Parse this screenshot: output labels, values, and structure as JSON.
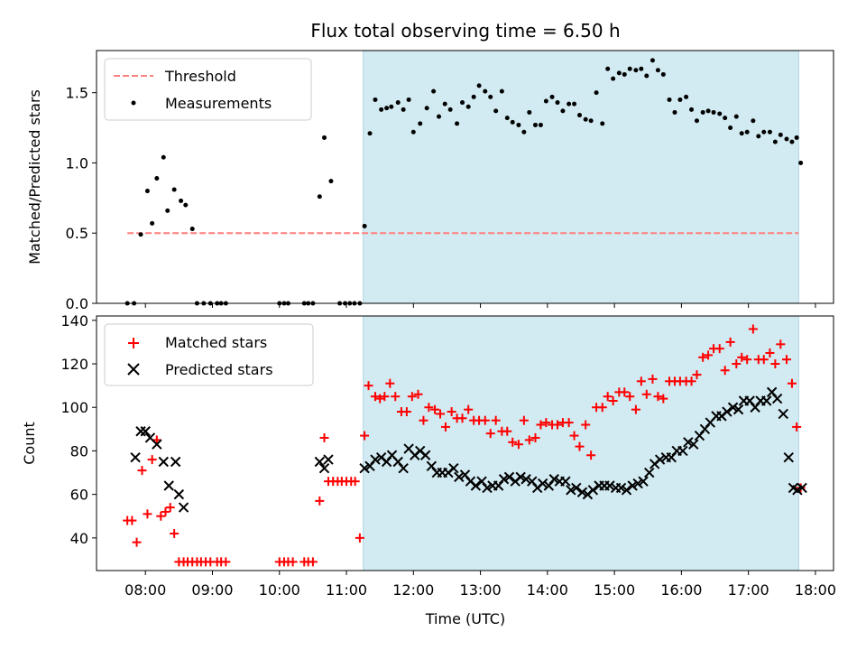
{
  "chart_data": [
    {
      "type": "scatter",
      "title": "Flux total observing time = 6.50 h",
      "xlabel": "",
      "ylabel": "Matched/Predicted stars",
      "xlim": [
        7.27,
        18.27
      ],
      "ylim": [
        0,
        1.8
      ],
      "yticks": [
        0.0,
        0.5,
        1.0,
        1.5
      ],
      "ytick_labels": [
        "0.0",
        "0.5",
        "1.0",
        "1.5"
      ],
      "shaded_region": {
        "x": [
          11.25,
          17.75
        ],
        "color": "#add8e6"
      },
      "threshold": {
        "name": "Threshold",
        "value": 0.5,
        "x": [
          7.73,
          17.75
        ],
        "color": "#ff7f7f"
      },
      "legend": {
        "placement": "upper-left",
        "entries": [
          "Threshold",
          "Measurements"
        ]
      },
      "series": [
        {
          "name": "Measurements",
          "marker": "dot",
          "color": "#000000",
          "x": [
            7.73,
            7.83,
            7.93,
            8.03,
            8.1,
            8.17,
            8.27,
            8.33,
            8.43,
            8.53,
            8.6,
            8.7,
            8.77,
            8.87,
            8.97,
            9.07,
            9.13,
            9.2,
            10.0,
            10.07,
            10.13,
            10.37,
            10.43,
            10.5,
            10.6,
            10.67,
            10.77,
            10.9,
            10.98,
            11.05,
            11.12,
            11.2,
            11.27,
            11.35,
            11.43,
            11.52,
            11.6,
            11.67,
            11.77,
            11.85,
            11.93,
            12.0,
            12.1,
            12.2,
            12.3,
            12.38,
            12.47,
            12.55,
            12.65,
            12.73,
            12.82,
            12.9,
            12.98,
            13.07,
            13.15,
            13.23,
            13.32,
            13.4,
            13.48,
            13.57,
            13.65,
            13.73,
            13.82,
            13.9,
            13.98,
            14.07,
            14.15,
            14.23,
            14.32,
            14.4,
            14.48,
            14.57,
            14.65,
            14.73,
            14.82,
            14.9,
            14.98,
            15.07,
            15.15,
            15.23,
            15.32,
            15.4,
            15.48,
            15.57,
            15.65,
            15.73,
            15.82,
            15.9,
            15.98,
            16.07,
            16.15,
            16.23,
            16.32,
            16.4,
            16.48,
            16.57,
            16.65,
            16.73,
            16.82,
            16.9,
            16.98,
            17.07,
            17.15,
            17.23,
            17.32,
            17.4,
            17.48,
            17.57,
            17.65,
            17.72,
            17.78
          ],
          "y": [
            0,
            0,
            0.49,
            0.8,
            0.57,
            0.89,
            1.04,
            0.66,
            0.81,
            0.73,
            0.7,
            0.53,
            0,
            0,
            0,
            0,
            0,
            0,
            0,
            0,
            0,
            0,
            0,
            0,
            0.76,
            1.18,
            0.87,
            0,
            0,
            0,
            0,
            0,
            0.55,
            1.21,
            1.45,
            1.38,
            1.39,
            1.4,
            1.43,
            1.38,
            1.45,
            1.22,
            1.28,
            1.39,
            1.51,
            1.33,
            1.42,
            1.38,
            1.28,
            1.43,
            1.4,
            1.47,
            1.55,
            1.51,
            1.47,
            1.37,
            1.51,
            1.32,
            1.29,
            1.27,
            1.22,
            1.36,
            1.27,
            1.27,
            1.44,
            1.47,
            1.43,
            1.37,
            1.42,
            1.42,
            1.34,
            1.31,
            1.3,
            1.5,
            1.28,
            1.67,
            1.6,
            1.64,
            1.63,
            1.67,
            1.66,
            1.67,
            1.62,
            1.73,
            1.66,
            1.63,
            1.45,
            1.36,
            1.45,
            1.47,
            1.38,
            1.3,
            1.36,
            1.37,
            1.36,
            1.35,
            1.32,
            1.25,
            1.33,
            1.21,
            1.22,
            1.3,
            1.19,
            1.22,
            1.22,
            1.15,
            1.2,
            1.17,
            1.15,
            1.18,
            1.0
          ]
        }
      ]
    },
    {
      "type": "scatter",
      "title": "",
      "xlabel": "Time (UTC)",
      "ylabel": "Count",
      "xlim": [
        7.27,
        18.27
      ],
      "ylim": [
        25,
        142
      ],
      "yticks": [
        40,
        60,
        80,
        100,
        120,
        140
      ],
      "ytick_labels": [
        "40",
        "60",
        "80",
        "100",
        "120",
        "140"
      ],
      "xticks": [
        8,
        9,
        10,
        11,
        12,
        13,
        14,
        15,
        16,
        17,
        18
      ],
      "xtick_labels": [
        "08:00",
        "09:00",
        "10:00",
        "11:00",
        "12:00",
        "13:00",
        "14:00",
        "15:00",
        "16:00",
        "17:00",
        "18:00"
      ],
      "shaded_region": {
        "x": [
          11.25,
          17.75
        ],
        "color": "#add8e6"
      },
      "legend": {
        "placement": "upper-left",
        "entries": [
          "Matched stars",
          "Predicted stars"
        ]
      },
      "series": [
        {
          "name": "Matched stars",
          "marker": "plus",
          "color": "#ff0000",
          "x": [
            7.73,
            7.8,
            7.87,
            7.95,
            8.03,
            8.1,
            8.17,
            8.23,
            8.3,
            8.37,
            8.43,
            8.5,
            8.57,
            8.63,
            8.7,
            8.77,
            8.83,
            8.9,
            8.97,
            9.07,
            9.13,
            9.2,
            10.0,
            10.07,
            10.13,
            10.2,
            10.37,
            10.43,
            10.5,
            10.6,
            10.67,
            10.73,
            10.8,
            10.87,
            10.93,
            11.0,
            11.07,
            11.13,
            11.2,
            11.27,
            11.33,
            11.43,
            11.5,
            11.57,
            11.65,
            11.73,
            11.82,
            11.9,
            11.98,
            12.07,
            12.15,
            12.23,
            12.32,
            12.4,
            12.48,
            12.57,
            12.65,
            12.73,
            12.82,
            12.9,
            12.98,
            13.07,
            13.15,
            13.23,
            13.32,
            13.4,
            13.48,
            13.57,
            13.65,
            13.73,
            13.82,
            13.9,
            13.98,
            14.07,
            14.15,
            14.23,
            14.32,
            14.4,
            14.48,
            14.57,
            14.65,
            14.73,
            14.82,
            14.9,
            14.98,
            15.07,
            15.15,
            15.23,
            15.32,
            15.4,
            15.48,
            15.57,
            15.65,
            15.73,
            15.82,
            15.9,
            15.98,
            16.07,
            16.15,
            16.23,
            16.32,
            16.4,
            16.48,
            16.57,
            16.65,
            16.73,
            16.82,
            16.9,
            16.98,
            17.07,
            17.15,
            17.23,
            17.32,
            17.4,
            17.48,
            17.57,
            17.65,
            17.72,
            17.78
          ],
          "y": [
            48,
            48,
            38,
            71,
            51,
            76,
            85,
            50,
            52,
            54,
            42,
            29,
            29,
            29,
            29,
            29,
            29,
            29,
            29,
            29,
            29,
            29,
            29,
            29,
            29,
            29,
            29,
            29,
            29,
            57,
            86,
            66,
            66,
            66,
            66,
            66,
            66,
            66,
            40,
            87,
            110,
            105,
            104,
            105,
            111,
            105,
            98,
            98,
            105,
            106,
            94,
            100,
            99,
            97,
            91,
            98,
            95,
            95,
            99,
            94,
            94,
            94,
            88,
            94,
            89,
            89,
            84,
            83,
            94,
            85,
            86,
            92,
            93,
            92,
            92,
            93,
            93,
            87,
            82,
            92,
            78,
            100,
            100,
            105,
            103,
            107,
            107,
            105,
            99,
            112,
            106,
            113,
            105,
            104,
            112,
            112,
            112,
            112,
            112,
            115,
            123,
            124,
            127,
            127,
            117,
            130,
            120,
            123,
            122,
            136,
            122,
            122,
            125,
            120,
            129,
            122,
            111,
            91,
            63
          ]
        },
        {
          "name": "Predicted stars",
          "marker": "x",
          "color": "#000000",
          "x": [
            7.85,
            7.93,
            8.0,
            8.07,
            8.17,
            8.27,
            8.35,
            8.45,
            8.5,
            8.57,
            10.6,
            10.67,
            10.73,
            11.27,
            11.35,
            11.43,
            11.52,
            11.6,
            11.68,
            11.77,
            11.85,
            11.93,
            12.02,
            12.1,
            12.18,
            12.27,
            12.35,
            12.43,
            12.52,
            12.6,
            12.68,
            12.77,
            12.85,
            12.93,
            13.02,
            13.1,
            13.18,
            13.27,
            13.35,
            13.43,
            13.52,
            13.6,
            13.68,
            13.77,
            13.85,
            13.93,
            14.02,
            14.1,
            14.18,
            14.27,
            14.35,
            14.43,
            14.52,
            14.6,
            14.68,
            14.77,
            14.85,
            14.93,
            15.02,
            15.1,
            15.18,
            15.27,
            15.35,
            15.43,
            15.52,
            15.6,
            15.68,
            15.77,
            15.85,
            15.93,
            16.02,
            16.1,
            16.18,
            16.27,
            16.35,
            16.43,
            16.52,
            16.6,
            16.68,
            16.77,
            16.85,
            16.93,
            17.02,
            17.1,
            17.18,
            17.27,
            17.35,
            17.43,
            17.52,
            17.6,
            17.67,
            17.73,
            17.8
          ],
          "y": [
            77,
            89,
            89,
            86,
            83,
            75,
            64,
            75,
            60,
            54,
            75,
            72,
            76,
            72,
            73,
            76,
            77,
            75,
            78,
            75,
            72,
            81,
            78,
            80,
            78,
            73,
            70,
            70,
            70,
            72,
            68,
            69,
            66,
            64,
            66,
            63,
            64,
            64,
            67,
            68,
            66,
            68,
            67,
            66,
            63,
            65,
            64,
            67,
            66,
            66,
            62,
            63,
            61,
            60,
            62,
            64,
            64,
            64,
            63,
            63,
            62,
            64,
            65,
            66,
            70,
            74,
            76,
            77,
            77,
            80,
            80,
            84,
            83,
            87,
            90,
            93,
            96,
            96,
            98,
            100,
            99,
            103,
            103,
            100,
            103,
            103,
            107,
            104,
            97,
            77,
            63,
            62,
            63
          ]
        }
      ]
    }
  ]
}
